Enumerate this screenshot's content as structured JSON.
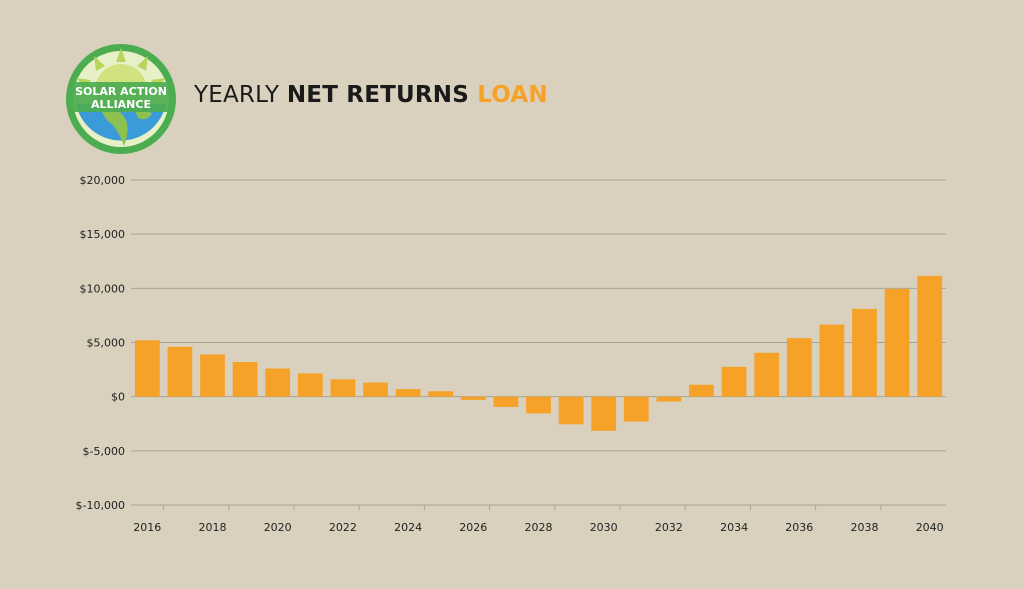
{
  "header": {
    "logo_text_line1": "SOLAR ACTION",
    "logo_text_line2": "ALLIANCE",
    "title_part1": "YEARLY ",
    "title_part2": "NET RETURNS",
    "title_part3": " LOAN"
  },
  "colors": {
    "background": "#d9d1be",
    "bar": "#f6a229",
    "accent": "#f6a229",
    "grid": "#a9a395",
    "logo_ring": "#4cad50"
  },
  "chart_data": {
    "type": "bar",
    "title": "YEARLY NET RETURNS LOAN",
    "xlabel": "",
    "ylabel": "",
    "ylim": [
      -10000,
      20000
    ],
    "y_ticks": [
      20000,
      15000,
      10000,
      5000,
      0,
      -5000,
      -10000
    ],
    "y_tick_labels": [
      "$20,000",
      "$15,000",
      "$10,000",
      "$5,000",
      "$0",
      "$-5,000",
      "$-10,000"
    ],
    "x_tick_labels": [
      "2016",
      "2018",
      "2020",
      "2022",
      "2024",
      "2026",
      "2028",
      "2030",
      "2032",
      "2034",
      "2036",
      "2038",
      "2040"
    ],
    "grid": true,
    "categories": [
      "2016",
      "2017",
      "2018",
      "2019",
      "2020",
      "2021",
      "2022",
      "2023",
      "2024",
      "2025",
      "2026",
      "2027",
      "2028",
      "2029",
      "2030",
      "2031",
      "2032",
      "2033",
      "2034",
      "2035",
      "2036",
      "2037",
      "2038",
      "2039",
      "2040"
    ],
    "values": [
      5200,
      4600,
      3900,
      3200,
      2600,
      2150,
      1600,
      1300,
      700,
      500,
      -300,
      -950,
      -1550,
      -2550,
      -3150,
      -2300,
      -450,
      1100,
      2750,
      4050,
      5400,
      6650,
      8100,
      9950,
      11150
    ]
  }
}
